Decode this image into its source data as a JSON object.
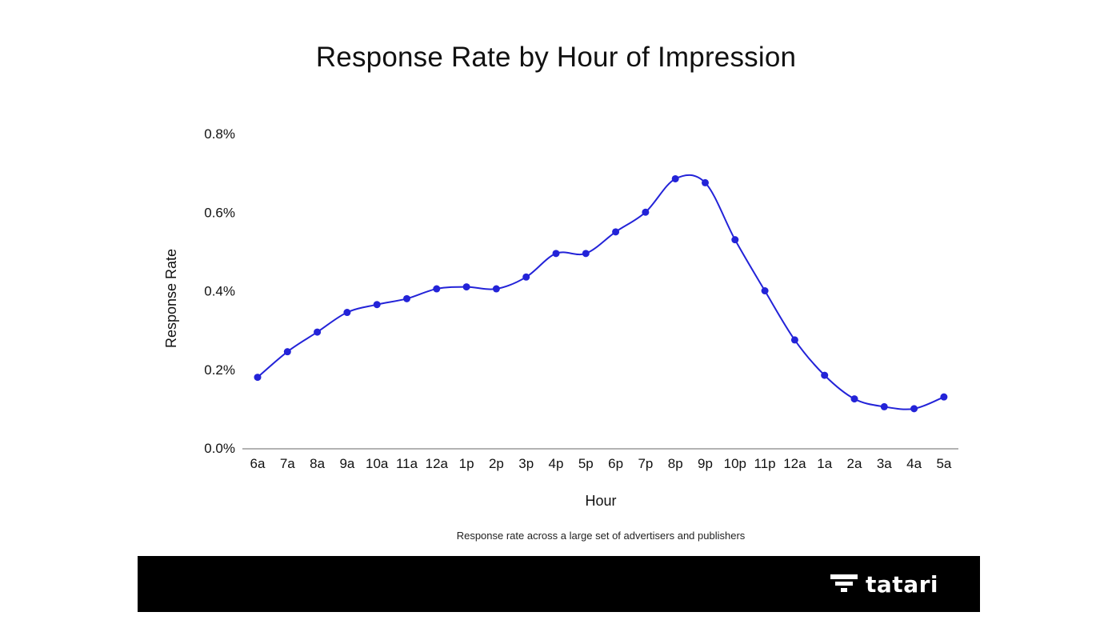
{
  "chart_data": {
    "type": "line",
    "title": "Response Rate by Hour of Impression",
    "xlabel": "Hour",
    "ylabel": "Response Rate",
    "caption": "Response rate across a large set of advertisers and publishers",
    "categories": [
      "6a",
      "7a",
      "8a",
      "9a",
      "10a",
      "11a",
      "12a",
      "1p",
      "2p",
      "3p",
      "4p",
      "5p",
      "6p",
      "7p",
      "8p",
      "9p",
      "10p",
      "11p",
      "12a",
      "1a",
      "2a",
      "3a",
      "4a",
      "5a"
    ],
    "series": [
      {
        "values": [
          0.18,
          0.245,
          0.295,
          0.345,
          0.365,
          0.38,
          0.405,
          0.41,
          0.405,
          0.435,
          0.495,
          0.495,
          0.55,
          0.6,
          0.685,
          0.675,
          0.53,
          0.4,
          0.275,
          0.185,
          0.125,
          0.105,
          0.1,
          0.13
        ],
        "color": "#2323d8"
      }
    ],
    "yticks": [
      "0.0%",
      "0.2%",
      "0.4%",
      "0.6%",
      "0.8%"
    ],
    "ylim": [
      0,
      0.8
    ],
    "grid": false
  },
  "brand": {
    "name": "tatari",
    "logo_icon": "tatari-logo-icon",
    "bar_color": "#000000"
  }
}
